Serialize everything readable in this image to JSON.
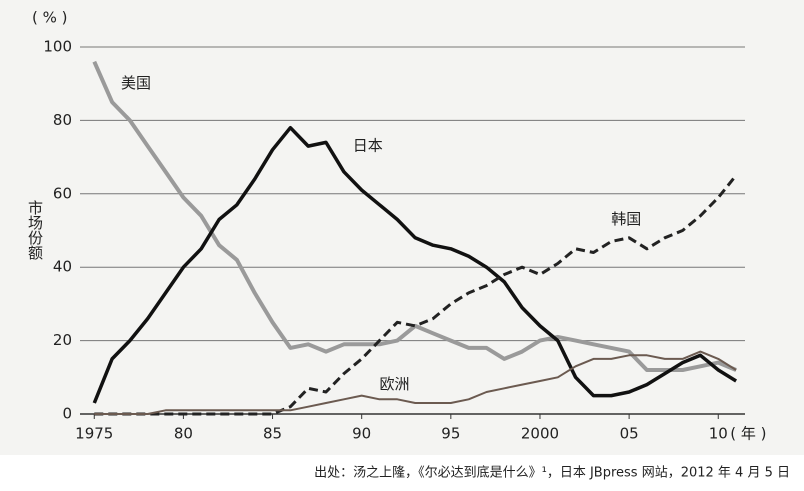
{
  "chart_data": {
    "type": "line",
    "y_unit": "( % )",
    "x_unit": "( 年 )",
    "y_label": "市场份额",
    "source": "出处：汤之上隆，《尔必达到底是什么》¹，日本 JBpress 网站，2012 年 4 月 5 日",
    "x": [
      1975,
      1976,
      1977,
      1978,
      1979,
      1980,
      1981,
      1982,
      1983,
      1984,
      1985,
      1986,
      1987,
      1988,
      1989,
      1990,
      1991,
      1992,
      1993,
      1994,
      1995,
      1996,
      1997,
      1998,
      1999,
      2000,
      2001,
      2002,
      2003,
      2004,
      2005,
      2006,
      2007,
      2008,
      2009,
      2010,
      2011
    ],
    "xlim": [
      1974.2,
      2011.5
    ],
    "xticks": [
      {
        "value": 1975,
        "label": "1975"
      },
      {
        "value": 1980,
        "label": "80"
      },
      {
        "value": 1985,
        "label": "85"
      },
      {
        "value": 1990,
        "label": "90"
      },
      {
        "value": 1995,
        "label": "95"
      },
      {
        "value": 2000,
        "label": "2000"
      },
      {
        "value": 2005,
        "label": "05"
      },
      {
        "value": 2010,
        "label": "10"
      }
    ],
    "ylim": [
      0,
      100
    ],
    "yticks": [
      0,
      20,
      40,
      60,
      80,
      100
    ],
    "grid": true,
    "series": [
      {
        "name": "美国",
        "color": "#9a9a9a",
        "style": "solid",
        "values": [
          96,
          85,
          80,
          73,
          66,
          59,
          54,
          46,
          42,
          33,
          25,
          18,
          19,
          17,
          19,
          19,
          19,
          20,
          24,
          22,
          20,
          18,
          18,
          15,
          17,
          20,
          21,
          20,
          19,
          18,
          17,
          12,
          12,
          12,
          13,
          14,
          12
        ]
      },
      {
        "name": "日本",
        "color": "#111111",
        "style": "solid",
        "values": [
          3,
          15,
          20,
          26,
          33,
          40,
          45,
          53,
          57,
          64,
          72,
          78,
          73,
          74,
          66,
          61,
          57,
          53,
          48,
          46,
          45,
          43,
          40,
          36,
          29,
          24,
          20,
          10,
          5,
          5,
          6,
          8,
          11,
          14,
          16,
          12,
          9
        ]
      },
      {
        "name": "韩国",
        "color": "#222222",
        "style": "dashed",
        "values": [
          0,
          0,
          0,
          0,
          0,
          0,
          0,
          0,
          0,
          0,
          0,
          2,
          7,
          6,
          11,
          15,
          20,
          25,
          24,
          26,
          30,
          33,
          35,
          38,
          40,
          38,
          41,
          45,
          44,
          47,
          48,
          45,
          48,
          50,
          54,
          59,
          65
        ]
      },
      {
        "name": "欧洲",
        "color": "#6b5a50",
        "style": "solid",
        "values": [
          0,
          0,
          0,
          0,
          1,
          1,
          1,
          1,
          1,
          1,
          1,
          1,
          2,
          3,
          4,
          5,
          4,
          4,
          3,
          3,
          3,
          4,
          6,
          7,
          8,
          9,
          10,
          13,
          15,
          15,
          16,
          16,
          15,
          15,
          17,
          15,
          12
        ]
      }
    ]
  }
}
